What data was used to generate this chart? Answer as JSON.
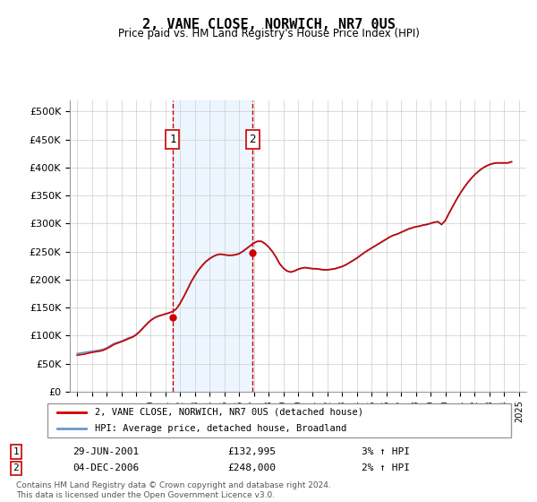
{
  "title": "2, VANE CLOSE, NORWICH, NR7 0US",
  "subtitle": "Price paid vs. HM Land Registry's House Price Index (HPI)",
  "ylabel": "",
  "background_color": "#ffffff",
  "plot_bg_color": "#ffffff",
  "grid_color": "#cccccc",
  "hpi_color": "#6699cc",
  "price_color": "#cc0000",
  "sale1_date_num": 2001.49,
  "sale1_price": 132995,
  "sale1_label": "1",
  "sale1_date_str": "29-JUN-2001",
  "sale1_price_str": "£132,995",
  "sale1_hpi_str": "3% ↑ HPI",
  "sale2_date_num": 2006.92,
  "sale2_price": 248000,
  "sale2_label": "2",
  "sale2_date_str": "04-DEC-2006",
  "sale2_price_str": "£248,000",
  "sale2_hpi_str": "2% ↑ HPI",
  "ylim_max": 520000,
  "ylim_min": 0,
  "xlim_min": 1994.5,
  "xlim_max": 2025.5,
  "legend_line1": "2, VANE CLOSE, NORWICH, NR7 0US (detached house)",
  "legend_line2": "HPI: Average price, detached house, Broadland",
  "footer": "Contains HM Land Registry data © Crown copyright and database right 2024.\nThis data is licensed under the Open Government Licence v3.0.",
  "yticks": [
    0,
    50000,
    100000,
    150000,
    200000,
    250000,
    300000,
    350000,
    400000,
    450000,
    500000
  ],
  "ytick_labels": [
    "£0",
    "£50K",
    "£100K",
    "£150K",
    "£200K",
    "£250K",
    "£300K",
    "£350K",
    "£400K",
    "£450K",
    "£500K"
  ],
  "hpi_data": {
    "years": [
      1995.0,
      1995.25,
      1995.5,
      1995.75,
      1996.0,
      1996.25,
      1996.5,
      1996.75,
      1997.0,
      1997.25,
      1997.5,
      1997.75,
      1998.0,
      1998.25,
      1998.5,
      1998.75,
      1999.0,
      1999.25,
      1999.5,
      1999.75,
      2000.0,
      2000.25,
      2000.5,
      2000.75,
      2001.0,
      2001.25,
      2001.5,
      2001.75,
      2002.0,
      2002.25,
      2002.5,
      2002.75,
      2003.0,
      2003.25,
      2003.5,
      2003.75,
      2004.0,
      2004.25,
      2004.5,
      2004.75,
      2005.0,
      2005.25,
      2005.5,
      2005.75,
      2006.0,
      2006.25,
      2006.5,
      2006.75,
      2007.0,
      2007.25,
      2007.5,
      2007.75,
      2008.0,
      2008.25,
      2008.5,
      2008.75,
      2009.0,
      2009.25,
      2009.5,
      2009.75,
      2010.0,
      2010.25,
      2010.5,
      2010.75,
      2011.0,
      2011.25,
      2011.5,
      2011.75,
      2012.0,
      2012.25,
      2012.5,
      2012.75,
      2013.0,
      2013.25,
      2013.5,
      2013.75,
      2014.0,
      2014.25,
      2014.5,
      2014.75,
      2015.0,
      2015.25,
      2015.5,
      2015.75,
      2016.0,
      2016.25,
      2016.5,
      2016.75,
      2017.0,
      2017.25,
      2017.5,
      2017.75,
      2018.0,
      2018.25,
      2018.5,
      2018.75,
      2019.0,
      2019.25,
      2019.5,
      2019.75,
      2020.0,
      2020.25,
      2020.5,
      2020.75,
      2021.0,
      2021.25,
      2021.5,
      2021.75,
      2022.0,
      2022.25,
      2022.5,
      2022.75,
      2023.0,
      2023.25,
      2023.5,
      2023.75,
      2024.0,
      2024.25,
      2024.5
    ],
    "values": [
      68000,
      69000,
      70000,
      71000,
      72000,
      73000,
      74000,
      75500,
      78000,
      82000,
      86000,
      88000,
      90000,
      93000,
      96000,
      98000,
      102000,
      108000,
      115000,
      122000,
      128000,
      132000,
      135000,
      137000,
      139000,
      141000,
      143000,
      148000,
      158000,
      170000,
      183000,
      196000,
      207000,
      217000,
      225000,
      232000,
      237000,
      241000,
      244000,
      245000,
      244000,
      243000,
      243000,
      244000,
      246000,
      250000,
      255000,
      260000,
      265000,
      268000,
      268000,
      264000,
      258000,
      250000,
      240000,
      228000,
      220000,
      215000,
      213000,
      215000,
      218000,
      220000,
      221000,
      220000,
      219000,
      219000,
      218000,
      217000,
      217000,
      218000,
      219000,
      221000,
      223000,
      226000,
      230000,
      234000,
      238000,
      243000,
      248000,
      252000,
      256000,
      260000,
      264000,
      268000,
      272000,
      276000,
      279000,
      281000,
      284000,
      287000,
      290000,
      292000,
      294000,
      295000,
      297000,
      298000,
      300000,
      302000,
      303000,
      298000,
      305000,
      318000,
      330000,
      342000,
      353000,
      363000,
      372000,
      380000,
      387000,
      393000,
      398000,
      402000,
      405000,
      407000,
      408000,
      408000,
      408000,
      408000,
      410000
    ]
  },
  "price_data": {
    "years": [
      1995.0,
      1995.25,
      1995.5,
      1995.75,
      1996.0,
      1996.25,
      1996.5,
      1996.75,
      1997.0,
      1997.25,
      1997.5,
      1997.75,
      1998.0,
      1998.25,
      1998.5,
      1998.75,
      1999.0,
      1999.25,
      1999.5,
      1999.75,
      2000.0,
      2000.25,
      2000.5,
      2000.75,
      2001.0,
      2001.25,
      2001.5,
      2001.75,
      2002.0,
      2002.25,
      2002.5,
      2002.75,
      2003.0,
      2003.25,
      2003.5,
      2003.75,
      2004.0,
      2004.25,
      2004.5,
      2004.75,
      2005.0,
      2005.25,
      2005.5,
      2005.75,
      2006.0,
      2006.25,
      2006.5,
      2006.75,
      2007.0,
      2007.25,
      2007.5,
      2007.75,
      2008.0,
      2008.25,
      2008.5,
      2008.75,
      2009.0,
      2009.25,
      2009.5,
      2009.75,
      2010.0,
      2010.25,
      2010.5,
      2010.75,
      2011.0,
      2011.25,
      2011.5,
      2011.75,
      2012.0,
      2012.25,
      2012.5,
      2012.75,
      2013.0,
      2013.25,
      2013.5,
      2013.75,
      2014.0,
      2014.25,
      2014.5,
      2014.75,
      2015.0,
      2015.25,
      2015.5,
      2015.75,
      2016.0,
      2016.25,
      2016.5,
      2016.75,
      2017.0,
      2017.25,
      2017.5,
      2017.75,
      2018.0,
      2018.25,
      2018.5,
      2018.75,
      2019.0,
      2019.25,
      2019.5,
      2019.75,
      2020.0,
      2020.25,
      2020.5,
      2020.75,
      2021.0,
      2021.25,
      2021.5,
      2021.75,
      2022.0,
      2022.25,
      2022.5,
      2022.75,
      2023.0,
      2023.25,
      2023.5,
      2023.75,
      2024.0,
      2024.25,
      2024.5
    ],
    "values": [
      65000,
      66000,
      67000,
      68500,
      70000,
      71000,
      72000,
      73500,
      76500,
      80000,
      84000,
      86500,
      89000,
      91500,
      94500,
      97000,
      101000,
      107000,
      114000,
      121000,
      127000,
      131500,
      134500,
      136500,
      138500,
      140500,
      142995,
      147995,
      158000,
      170000,
      183000,
      196500,
      207500,
      217500,
      225500,
      232500,
      237500,
      241500,
      244500,
      245500,
      244500,
      243500,
      243500,
      244500,
      246500,
      250500,
      255500,
      260500,
      265500,
      268500,
      268500,
      264500,
      258500,
      250500,
      240500,
      228500,
      220500,
      215500,
      213500,
      215500,
      218500,
      220500,
      221500,
      220500,
      219500,
      219500,
      218500,
      217500,
      217500,
      218500,
      219500,
      221500,
      223500,
      226500,
      230500,
      234500,
      238500,
      243500,
      248000,
      252500,
      256500,
      260500,
      264500,
      268500,
      272500,
      276500,
      279500,
      281500,
      284500,
      287500,
      290500,
      292500,
      294500,
      295500,
      297500,
      298500,
      300500,
      302500,
      303500,
      298500,
      305500,
      318500,
      330500,
      342500,
      353500,
      363500,
      372500,
      380500,
      387500,
      393500,
      398500,
      402500,
      405500,
      407500,
      408500,
      408500,
      408500,
      408500,
      410500
    ]
  }
}
